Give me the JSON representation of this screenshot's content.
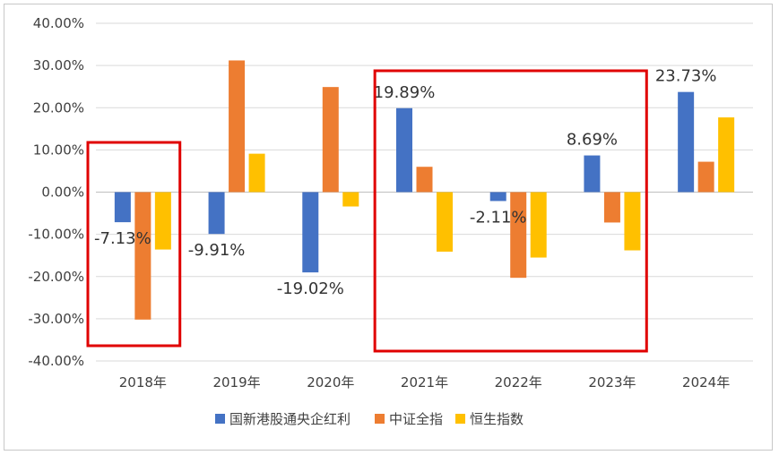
{
  "chart_data": {
    "type": "bar",
    "categories": [
      "2018年",
      "2019年",
      "2020年",
      "2021年",
      "2022年",
      "2023年",
      "2024年"
    ],
    "series": [
      {
        "name": "国新港股通央企红利",
        "color": "#4472c4",
        "values": [
          -7.13,
          -9.91,
          -19.02,
          19.89,
          -2.11,
          8.69,
          23.73
        ]
      },
      {
        "name": "中证全指",
        "color": "#ed7d31",
        "values": [
          -30.2,
          31.2,
          24.9,
          6.0,
          -20.3,
          -7.2,
          7.2
        ]
      },
      {
        "name": "恒生指数",
        "color": "#ffc000",
        "values": [
          -13.6,
          9.1,
          -3.4,
          -14.1,
          -15.5,
          -13.8,
          17.7
        ]
      }
    ],
    "data_labels": [
      "-7.13%",
      "-9.91%",
      "-19.02%",
      "19.89%",
      "-2.11%",
      "8.69%",
      "23.73%"
    ],
    "y_ticks": [
      "40.00%",
      "30.00%",
      "20.00%",
      "10.00%",
      "0.00%",
      "-10.00%",
      "-20.00%",
      "-30.00%",
      "-40.00%"
    ],
    "ylim": [
      -40,
      40
    ],
    "grid": true,
    "legend_position": "bottom",
    "highlight_boxes": [
      {
        "categories": [
          "2018年"
        ],
        "color": "#e00000"
      },
      {
        "categories": [
          "2021年",
          "2022年",
          "2023年"
        ],
        "color": "#e00000"
      }
    ]
  }
}
